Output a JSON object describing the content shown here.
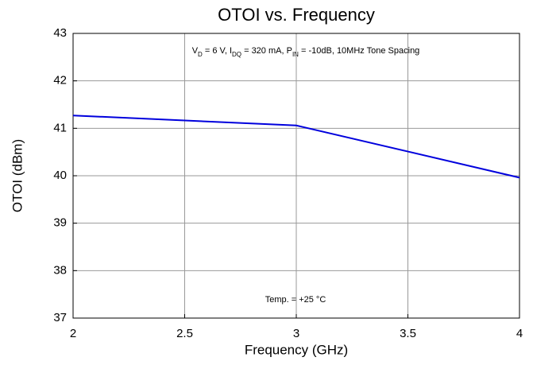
{
  "chart_data": {
    "type": "line",
    "title": "OTOI vs. Frequency",
    "x_label": "Frequency (GHz)",
    "y_label": "OTOI (dBm)",
    "annotation_parts": [
      "V",
      "D",
      " = 6 V, I",
      "DQ",
      " = 320 mA, P",
      "IN",
      " = -10dB, 10MHz Tone Spacing"
    ],
    "annotation_2": "Temp. = +25 °C",
    "x": [
      2,
      3,
      4
    ],
    "series": [
      {
        "color": "#0000dd",
        "values": [
          41.27,
          41.06,
          39.96
        ]
      }
    ],
    "xlim": [
      2,
      4
    ],
    "xticks": [
      2,
      2.5,
      3,
      3.5,
      4
    ],
    "ylim": [
      37,
      43
    ],
    "yticks": [
      37,
      38,
      39,
      40,
      41,
      42,
      43
    ],
    "grid": true
  }
}
